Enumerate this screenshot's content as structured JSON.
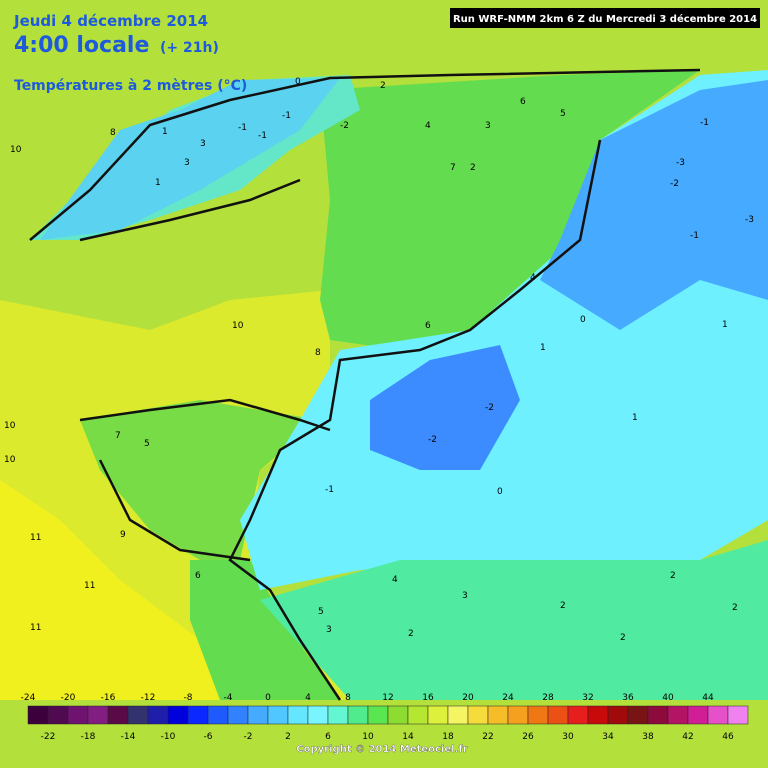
{
  "header": {
    "date": "Jeudi 4 décembre 2014",
    "time": "4:00 locale",
    "lead": "(+ 21h)",
    "field": "Températures à 2 mètres (°C)",
    "run": "Run WRF-NMM 2km 6 Z du Mercredi 3 décembre 2014"
  },
  "map_labels": [
    "10",
    "8",
    "1",
    "3",
    "1",
    "3",
    "-1",
    "-1",
    "0",
    "-1",
    "-2",
    "2",
    "4",
    "3",
    "5",
    "6",
    "2",
    "7",
    "4",
    "8",
    "6",
    "-3",
    "-1",
    "-3",
    "-2",
    "-1",
    "1",
    "0",
    "1",
    "-2",
    "-2",
    "0",
    "-1",
    "1",
    "2",
    "3",
    "4",
    "2",
    "10",
    "7",
    "5",
    "10",
    "9",
    "11",
    "11",
    "11",
    "10",
    "6",
    "5",
    "3",
    "2",
    "2",
    "2"
  ],
  "scale": {
    "top_labels": [
      -24,
      -20,
      -16,
      -12,
      -8,
      -4,
      0,
      4,
      8,
      12,
      16,
      20,
      24,
      28,
      32,
      36,
      40,
      44
    ],
    "bottom_labels": [
      -22,
      -18,
      -14,
      -10,
      -6,
      -2,
      2,
      6,
      10,
      14,
      18,
      22,
      26,
      30,
      34,
      38,
      42,
      46
    ],
    "colors": [
      "#3c003c",
      "#500a50",
      "#6e1470",
      "#821e82",
      "#5a0a46",
      "#32326e",
      "#1e1eaa",
      "#0000dc",
      "#0a28ff",
      "#1e5aff",
      "#3282ff",
      "#46aaff",
      "#50c8ff",
      "#64e6ff",
      "#78f5ff",
      "#64f5d2",
      "#50eb8c",
      "#5ae650",
      "#8cdc32",
      "#b4e632",
      "#dcf03c",
      "#f5f564",
      "#f5dc3c",
      "#f5be28",
      "#f5a01e",
      "#f07814",
      "#eb5014",
      "#e61e1e",
      "#c80a0a",
      "#a00a0a",
      "#781414",
      "#8c0a3c",
      "#b41464",
      "#d21e96",
      "#e650c8",
      "#f082f0"
    ]
  },
  "copyright": "Copyright © 2014 Meteociel.fr"
}
